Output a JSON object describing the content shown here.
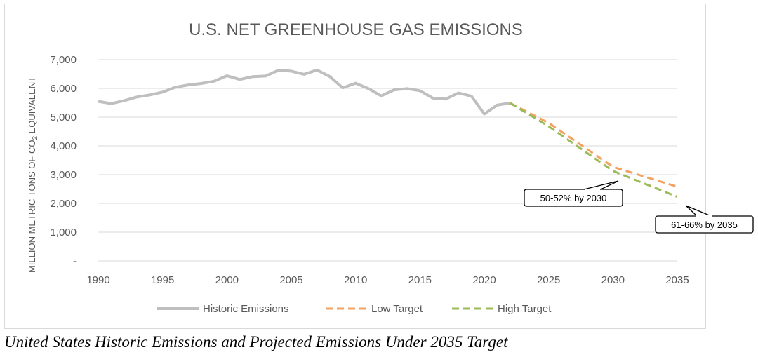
{
  "caption": "United States Historic Emissions and Projected Emissions Under 2035 Target",
  "chart_data": {
    "type": "line",
    "title": "U.S. NET GREENHOUSE GAS EMISSIONS",
    "ylabel": "MILLION METRIC TONS OF CO2 EQUIVALENT",
    "xlabel": "",
    "xlim": [
      1990,
      2035
    ],
    "ylim": [
      0,
      7000
    ],
    "x_ticks": [
      "1990",
      "1995",
      "2000",
      "2005",
      "2010",
      "2015",
      "2020",
      "2025",
      "2030",
      "2035"
    ],
    "y_ticks": [
      "-",
      "1,000",
      "2,000",
      "3,000",
      "4,000",
      "5,000",
      "6,000",
      "7,000"
    ],
    "grid": true,
    "legend_position": "bottom",
    "series": [
      {
        "name": "Historic Emissions",
        "color": "#bfbfbf",
        "style": "solid",
        "x": [
          1990,
          1991,
          1992,
          1993,
          1994,
          1995,
          1996,
          1997,
          1998,
          1999,
          2000,
          2001,
          2002,
          2003,
          2004,
          2005,
          2006,
          2007,
          2008,
          2009,
          2010,
          2011,
          2012,
          2013,
          2014,
          2015,
          2016,
          2017,
          2018,
          2019,
          2020,
          2021,
          2022
        ],
        "y": [
          5550,
          5470,
          5570,
          5700,
          5770,
          5870,
          6040,
          6120,
          6170,
          6250,
          6440,
          6310,
          6410,
          6430,
          6630,
          6600,
          6490,
          6640,
          6410,
          6020,
          6180,
          5990,
          5740,
          5950,
          5990,
          5920,
          5660,
          5630,
          5840,
          5730,
          5110,
          5420,
          5490
        ]
      },
      {
        "name": "Low Target",
        "color": "#f4a261",
        "style": "dashed",
        "x": [
          2022,
          2025,
          2030,
          2035
        ],
        "y": [
          5490,
          4800,
          3270,
          2580
        ]
      },
      {
        "name": "High Target",
        "color": "#9bbb59",
        "style": "dashed",
        "x": [
          2022,
          2025,
          2030,
          2035
        ],
        "y": [
          5490,
          4680,
          3130,
          2230
        ]
      }
    ],
    "annotations": [
      {
        "text": "50-52% by 2030",
        "x": 2030,
        "y": 3200
      },
      {
        "text": "61-66% by 2035",
        "x": 2035,
        "y": 2000
      }
    ]
  }
}
